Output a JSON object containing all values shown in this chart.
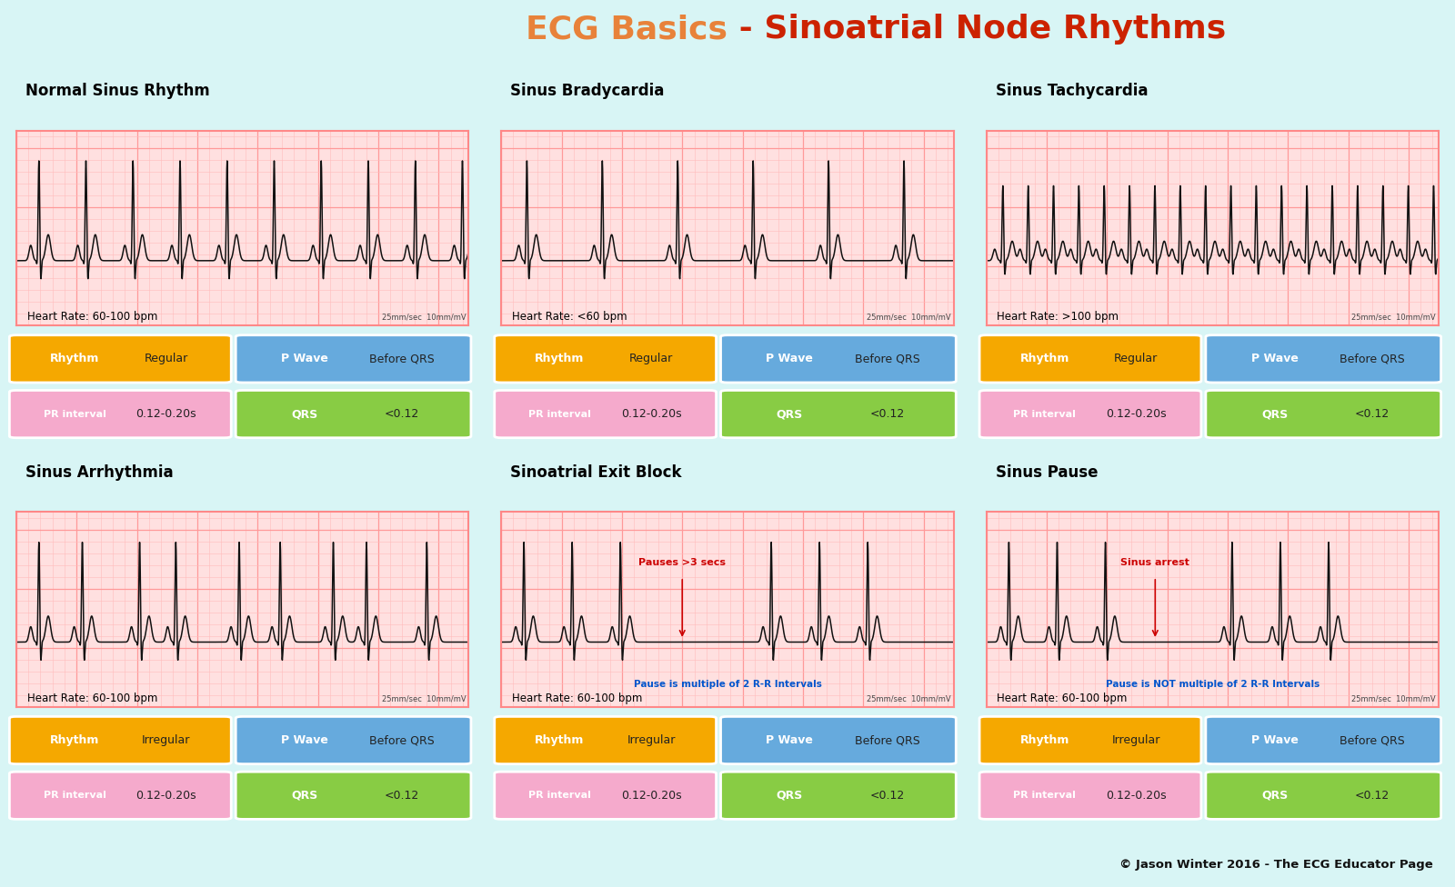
{
  "title_part1": "ECG Basics",
  "title_part2": " - Sinoatrial Node Rhythms",
  "title_color1": "#E8823A",
  "title_color2": "#CC2200",
  "title_fontsize": 26,
  "background_color": "#D8F5F5",
  "ecg_bg_color": "#FFE0E0",
  "ecg_grid_minor": "#FFBBBB",
  "ecg_grid_major": "#FF9999",
  "ecg_line_color": "#111111",
  "copyright": "© Jason Winter 2016 - The ECG Educator Page",
  "panels": [
    {
      "title": "Normal Sinus Rhythm",
      "heart_rate": "Heart Rate: 60-100 bpm",
      "rhythm": "Regular",
      "p_wave": "Before QRS",
      "pr_interval": "0.12-0.20s",
      "qrs": "<0.12",
      "rhythm_type": "normal",
      "annotation": "",
      "annotation_color": "#CC0000",
      "annotation2": "",
      "annotation2_color": "#0055CC"
    },
    {
      "title": "Sinus Bradycardia",
      "heart_rate": "Heart Rate: <60 bpm",
      "rhythm": "Regular",
      "p_wave": "Before QRS",
      "pr_interval": "0.12-0.20s",
      "qrs": "<0.12",
      "rhythm_type": "brady",
      "annotation": "",
      "annotation_color": "#CC0000",
      "annotation2": "",
      "annotation2_color": "#0055CC"
    },
    {
      "title": "Sinus Tachycardia",
      "heart_rate": "Heart Rate: >100 bpm",
      "rhythm": "Regular",
      "p_wave": "Before QRS",
      "pr_interval": "0.12-0.20s",
      "qrs": "<0.12",
      "rhythm_type": "tachy",
      "annotation": "",
      "annotation_color": "#CC0000",
      "annotation2": "",
      "annotation2_color": "#0055CC"
    },
    {
      "title": "Sinus Arrhythmia",
      "heart_rate": "Heart Rate: 60-100 bpm",
      "rhythm": "Irregular",
      "p_wave": "Before QRS",
      "pr_interval": "0.12-0.20s",
      "qrs": "<0.12",
      "rhythm_type": "arrhythmia",
      "annotation": "",
      "annotation_color": "#CC0000",
      "annotation2": "",
      "annotation2_color": "#0055CC"
    },
    {
      "title": "Sinoatrial Exit Block",
      "heart_rate": "Heart Rate: 60-100 bpm",
      "rhythm": "Irregular",
      "p_wave": "Before QRS",
      "pr_interval": "0.12-0.20s",
      "qrs": "<0.12",
      "rhythm_type": "exit_block",
      "annotation": "Pauses >3 secs",
      "annotation_color": "#CC0000",
      "annotation2": "Pause is multiple of 2 R-R Intervals",
      "annotation2_color": "#0055CC"
    },
    {
      "title": "Sinus Pause",
      "heart_rate": "Heart Rate: 60-100 bpm",
      "rhythm": "Irregular",
      "p_wave": "Before QRS",
      "pr_interval": "0.12-0.20s",
      "qrs": "<0.12",
      "rhythm_type": "sinus_pause",
      "annotation": "Sinus arrest",
      "annotation_color": "#CC0000",
      "annotation2": "Pause is NOT multiple of 2 R-R Intervals",
      "annotation2_color": "#0055CC"
    }
  ],
  "btn_rhythm_color": "#F5A800",
  "btn_pwave_color": "#66AADD",
  "btn_pr_color": "#F5AACC",
  "btn_qrs_color": "#88CC44",
  "speed_label": "25mm/sec  10mm/mV"
}
